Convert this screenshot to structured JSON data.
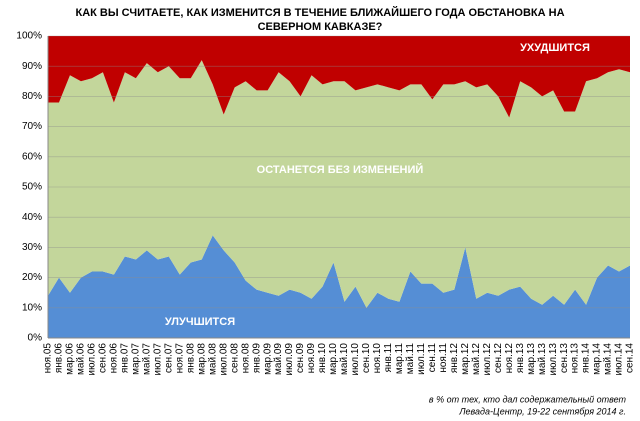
{
  "chart_data": {
    "type": "stacked_area",
    "title": "КАК ВЫ СЧИТАЕТЕ, КАК ИЗМЕНИТСЯ В ТЕЧЕНИЕ БЛИЖАЙШЕГО ГОДА ОБСТАНОВКА НА СЕВЕРНОМ КАВКАЗЕ?",
    "notes": [
      "в % от тех, кто дал содержательный ответ",
      "Левада-Центр, 19-22 сентября 2014 г."
    ],
    "categories": [
      "ноя.05",
      "янв.06",
      "мар.06",
      "май.06",
      "июл.06",
      "сен.06",
      "ноя.06",
      "янв.07",
      "мар.07",
      "май.07",
      "июл.07",
      "сен.07",
      "ноя.07",
      "янв.08",
      "мар.08",
      "май.08",
      "июл.08",
      "сен.08",
      "ноя.08",
      "янв.09",
      "мар.09",
      "май.09",
      "июл.09",
      "сен.09",
      "ноя.09",
      "янв.10",
      "мар.10",
      "май.10",
      "июл.10",
      "сен.10",
      "ноя.10",
      "янв.11",
      "мар.11",
      "май.11",
      "июл.11",
      "сен.11",
      "ноя.11",
      "янв.12",
      "мар.12",
      "май.12",
      "июл.12",
      "сен.12",
      "ноя.12",
      "янв.13",
      "мар.13",
      "май.13",
      "июл.13",
      "сен.13",
      "ноя.13",
      "янв.14",
      "мар.14",
      "май.14",
      "июл.14",
      "сен.14"
    ],
    "series": [
      {
        "name": "УЛУЧШИТСЯ",
        "color": "#558ed5",
        "values": [
          14,
          20,
          15,
          20,
          22,
          22,
          21,
          27,
          26,
          29,
          26,
          27,
          21,
          25,
          26,
          34,
          29,
          25,
          19,
          16,
          15,
          14,
          16,
          15,
          13,
          17,
          25,
          12,
          17,
          10,
          15,
          13,
          12,
          22,
          18,
          18,
          15,
          16,
          30,
          13,
          15,
          14,
          16,
          17,
          13,
          11,
          14,
          11,
          16,
          11,
          20,
          24,
          22,
          24
        ]
      },
      {
        "name": "ОСТАНЕТСЯ БЕЗ ИЗМЕНЕНИЙ",
        "color": "#c3d69b",
        "values": [
          64,
          58,
          72,
          65,
          64,
          66,
          57,
          61,
          60,
          62,
          62,
          63,
          65,
          61,
          66,
          50,
          45,
          58,
          66,
          66,
          67,
          74,
          69,
          65,
          74,
          67,
          60,
          73,
          65,
          73,
          69,
          70,
          70,
          62,
          66,
          61,
          69,
          68,
          55,
          70,
          69,
          66,
          57,
          68,
          70,
          69,
          68,
          64,
          59,
          74,
          66,
          64,
          67,
          64
        ]
      },
      {
        "name": "УХУДШИТСЯ",
        "color": "#c00000",
        "values": [
          22,
          22,
          13,
          15,
          14,
          12,
          22,
          12,
          14,
          9,
          12,
          10,
          14,
          14,
          8,
          16,
          26,
          17,
          15,
          18,
          18,
          12,
          15,
          20,
          13,
          16,
          15,
          15,
          18,
          17,
          16,
          17,
          18,
          16,
          16,
          21,
          16,
          16,
          15,
          17,
          16,
          20,
          27,
          15,
          17,
          20,
          18,
          25,
          25,
          15,
          14,
          12,
          11,
          12
        ]
      }
    ],
    "ylim": [
      0,
      100
    ],
    "yticks": [
      {
        "value": 0,
        "label": "0%"
      },
      {
        "value": 10,
        "label": "10%"
      },
      {
        "value": 20,
        "label": "20%"
      },
      {
        "value": 30,
        "label": "30%"
      },
      {
        "value": 40,
        "label": "40%"
      },
      {
        "value": 50,
        "label": "50%"
      },
      {
        "value": 60,
        "label": "60%"
      },
      {
        "value": 70,
        "label": "70%"
      },
      {
        "value": 80,
        "label": "80%"
      },
      {
        "value": 90,
        "label": "90%"
      },
      {
        "value": 100,
        "label": "100%"
      }
    ],
    "grid": true
  }
}
